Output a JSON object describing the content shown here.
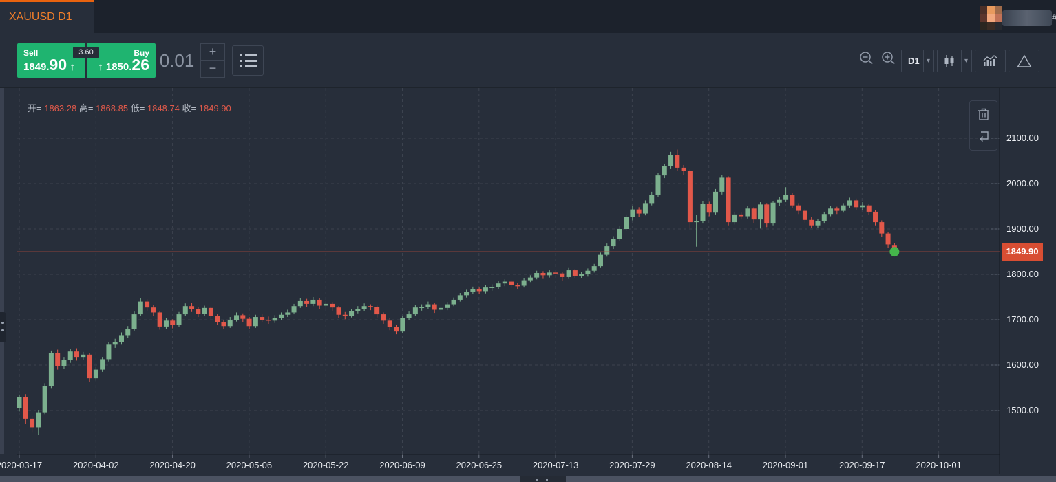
{
  "window": {
    "tab_title": "XAUUSD D1",
    "user_suffix": "#"
  },
  "trade": {
    "sell_label": "Sell",
    "sell_price_main": "1849.",
    "sell_price_big": "90",
    "sell_arrow": "↑",
    "spread": "3.60",
    "buy_label": "Buy",
    "buy_price_main": "1850.",
    "buy_price_big": "26",
    "buy_arrow": "↑",
    "volume": "0.01",
    "increase": "+",
    "decrease": "−"
  },
  "toolbar": {
    "interval": "D1"
  },
  "ohlc": {
    "open_label": "开=",
    "open": "1863.28",
    "high_label": "高=",
    "high": "1868.85",
    "low_label": "低=",
    "low": "1848.74",
    "close_label": "收=",
    "close": "1849.90"
  },
  "price_label": "1849.90",
  "colors": {
    "accent_orange": "#e9630f",
    "buy_sell_green": "#1fb470",
    "up": "#7cb08e",
    "down": "#e2584a",
    "price_line": "#b04a3c",
    "price_label_bg": "#d84e33",
    "dot": "#45b54b",
    "background": "#272e3a",
    "tabbar": "#1c222c",
    "grid": "#3c434f"
  },
  "chart_data": {
    "type": "candlestick",
    "symbol": "XAUUSD",
    "interval": "D1",
    "title": "XAUUSD D1",
    "x_tick_labels": [
      "2020-03-17",
      "2020-04-02",
      "2020-04-20",
      "2020-05-06",
      "2020-05-22",
      "2020-06-09",
      "2020-06-25",
      "2020-07-13",
      "2020-07-29",
      "2020-08-14",
      "2020-09-01",
      "2020-09-17",
      "2020-10-01"
    ],
    "y_tick_labels": [
      "2100.00",
      "2000.00",
      "1900.00",
      "1800.00",
      "1700.00",
      "1600.00",
      "1500.00"
    ],
    "y_range": [
      1430,
      2130
    ],
    "grid": "dashed",
    "last_price": 1849.9,
    "last_candle_ohlc": {
      "open": 1863.28,
      "high": 1868.85,
      "low": 1848.74,
      "close": 1849.9
    },
    "candles": [
      [
        1506,
        1535,
        1498,
        1530
      ],
      [
        1530,
        1536,
        1470,
        1482
      ],
      [
        1482,
        1488,
        1451,
        1463
      ],
      [
        1463,
        1500,
        1446,
        1496
      ],
      [
        1496,
        1560,
        1492,
        1554
      ],
      [
        1554,
        1632,
        1548,
        1627
      ],
      [
        1627,
        1634,
        1590,
        1598
      ],
      [
        1598,
        1618,
        1591,
        1612
      ],
      [
        1612,
        1636,
        1605,
        1630
      ],
      [
        1630,
        1637,
        1610,
        1618
      ],
      [
        1618,
        1629,
        1612,
        1623
      ],
      [
        1623,
        1626,
        1563,
        1571
      ],
      [
        1571,
        1596,
        1566,
        1590
      ],
      [
        1590,
        1618,
        1585,
        1613
      ],
      [
        1613,
        1650,
        1608,
        1645
      ],
      [
        1645,
        1658,
        1638,
        1651
      ],
      [
        1651,
        1672,
        1645,
        1666
      ],
      [
        1666,
        1686,
        1660,
        1680
      ],
      [
        1680,
        1718,
        1676,
        1712
      ],
      [
        1712,
        1747,
        1708,
        1740
      ],
      [
        1740,
        1745,
        1720,
        1727
      ],
      [
        1727,
        1733,
        1708,
        1716
      ],
      [
        1716,
        1719,
        1678,
        1685
      ],
      [
        1685,
        1704,
        1680,
        1698
      ],
      [
        1698,
        1701,
        1681,
        1688
      ],
      [
        1688,
        1717,
        1684,
        1712
      ],
      [
        1712,
        1736,
        1708,
        1730
      ],
      [
        1730,
        1737,
        1717,
        1724
      ],
      [
        1724,
        1728,
        1706,
        1713
      ],
      [
        1713,
        1731,
        1709,
        1726
      ],
      [
        1726,
        1729,
        1702,
        1708
      ],
      [
        1708,
        1712,
        1688,
        1694
      ],
      [
        1694,
        1699,
        1679,
        1686
      ],
      [
        1686,
        1706,
        1682,
        1700
      ],
      [
        1700,
        1716,
        1696,
        1710
      ],
      [
        1710,
        1714,
        1695,
        1702
      ],
      [
        1702,
        1706,
        1679,
        1686
      ],
      [
        1686,
        1711,
        1682,
        1706
      ],
      [
        1706,
        1712,
        1694,
        1700
      ],
      [
        1700,
        1707,
        1691,
        1698
      ],
      [
        1698,
        1710,
        1693,
        1704
      ],
      [
        1704,
        1716,
        1699,
        1711
      ],
      [
        1711,
        1722,
        1706,
        1716
      ],
      [
        1716,
        1735,
        1712,
        1730
      ],
      [
        1730,
        1748,
        1726,
        1741
      ],
      [
        1741,
        1746,
        1728,
        1735
      ],
      [
        1735,
        1750,
        1730,
        1744
      ],
      [
        1744,
        1747,
        1724,
        1731
      ],
      [
        1731,
        1741,
        1726,
        1735
      ],
      [
        1735,
        1739,
        1720,
        1727
      ],
      [
        1727,
        1730,
        1704,
        1711
      ],
      [
        1711,
        1717,
        1701,
        1709
      ],
      [
        1709,
        1724,
        1705,
        1719
      ],
      [
        1719,
        1730,
        1714,
        1724
      ],
      [
        1724,
        1736,
        1719,
        1730
      ],
      [
        1730,
        1734,
        1721,
        1728
      ],
      [
        1728,
        1731,
        1705,
        1712
      ],
      [
        1712,
        1716,
        1691,
        1698
      ],
      [
        1698,
        1703,
        1677,
        1684
      ],
      [
        1684,
        1689,
        1668,
        1674
      ],
      [
        1674,
        1709,
        1671,
        1704
      ],
      [
        1704,
        1718,
        1699,
        1712
      ],
      [
        1712,
        1732,
        1708,
        1727
      ],
      [
        1727,
        1734,
        1720,
        1728
      ],
      [
        1728,
        1740,
        1723,
        1734
      ],
      [
        1734,
        1737,
        1715,
        1722
      ],
      [
        1722,
        1731,
        1716,
        1726
      ],
      [
        1726,
        1739,
        1721,
        1734
      ],
      [
        1734,
        1749,
        1730,
        1744
      ],
      [
        1744,
        1759,
        1740,
        1754
      ],
      [
        1754,
        1766,
        1749,
        1761
      ],
      [
        1761,
        1773,
        1756,
        1768
      ],
      [
        1768,
        1771,
        1756,
        1763
      ],
      [
        1763,
        1776,
        1758,
        1771
      ],
      [
        1771,
        1778,
        1764,
        1772
      ],
      [
        1772,
        1785,
        1768,
        1780
      ],
      [
        1780,
        1789,
        1774,
        1784
      ],
      [
        1784,
        1787,
        1770,
        1776
      ],
      [
        1776,
        1781,
        1767,
        1775
      ],
      [
        1775,
        1792,
        1771,
        1787
      ],
      [
        1787,
        1798,
        1783,
        1793
      ],
      [
        1793,
        1808,
        1789,
        1803
      ],
      [
        1803,
        1807,
        1790,
        1798
      ],
      [
        1798,
        1809,
        1793,
        1804
      ],
      [
        1804,
        1812,
        1796,
        1802
      ],
      [
        1802,
        1806,
        1786,
        1794
      ],
      [
        1794,
        1814,
        1790,
        1809
      ],
      [
        1809,
        1812,
        1791,
        1797
      ],
      [
        1797,
        1806,
        1792,
        1800
      ],
      [
        1800,
        1813,
        1795,
        1808
      ],
      [
        1808,
        1823,
        1804,
        1818
      ],
      [
        1818,
        1848,
        1814,
        1843
      ],
      [
        1843,
        1868,
        1839,
        1862
      ],
      [
        1862,
        1884,
        1856,
        1878
      ],
      [
        1878,
        1906,
        1874,
        1900
      ],
      [
        1900,
        1932,
        1896,
        1926
      ],
      [
        1926,
        1950,
        1919,
        1943
      ],
      [
        1943,
        1948,
        1926,
        1934
      ],
      [
        1934,
        1963,
        1930,
        1957
      ],
      [
        1957,
        1982,
        1952,
        1975
      ],
      [
        1975,
        2024,
        1971,
        2018
      ],
      [
        2018,
        2044,
        2012,
        2038
      ],
      [
        2038,
        2070,
        2032,
        2063
      ],
      [
        2063,
        2075,
        2028,
        2035
      ],
      [
        2035,
        2041,
        2019,
        2028
      ],
      [
        2028,
        2031,
        1903,
        1915
      ],
      [
        1915,
        1931,
        1861,
        1918
      ],
      [
        1918,
        1962,
        1912,
        1956
      ],
      [
        1956,
        1960,
        1928,
        1936
      ],
      [
        1936,
        1988,
        1932,
        1982
      ],
      [
        1982,
        2019,
        1976,
        2013
      ],
      [
        2013,
        2016,
        1908,
        1915
      ],
      [
        1915,
        1938,
        1910,
        1932
      ],
      [
        1932,
        1936,
        1921,
        1928
      ],
      [
        1928,
        1951,
        1923,
        1945
      ],
      [
        1945,
        1948,
        1913,
        1921
      ],
      [
        1921,
        1959,
        1901,
        1954
      ],
      [
        1954,
        1957,
        1904,
        1912
      ],
      [
        1912,
        1962,
        1908,
        1958
      ],
      [
        1958,
        1971,
        1951,
        1964
      ],
      [
        1964,
        1992,
        1959,
        1975
      ],
      [
        1975,
        1979,
        1946,
        1952
      ],
      [
        1952,
        1957,
        1933,
        1940
      ],
      [
        1940,
        1944,
        1914,
        1920
      ],
      [
        1920,
        1927,
        1902,
        1908
      ],
      [
        1908,
        1922,
        1903,
        1917
      ],
      [
        1917,
        1938,
        1912,
        1933
      ],
      [
        1933,
        1950,
        1928,
        1945
      ],
      [
        1945,
        1949,
        1933,
        1940
      ],
      [
        1940,
        1957,
        1936,
        1952
      ],
      [
        1952,
        1969,
        1947,
        1963
      ],
      [
        1963,
        1967,
        1941,
        1948
      ],
      [
        1948,
        1959,
        1942,
        1952
      ],
      [
        1952,
        1956,
        1931,
        1938
      ],
      [
        1938,
        1942,
        1908,
        1915
      ],
      [
        1915,
        1919,
        1882,
        1890
      ],
      [
        1890,
        1894,
        1858,
        1866
      ],
      [
        1863.28,
        1868.85,
        1848.74,
        1849.9
      ]
    ]
  }
}
